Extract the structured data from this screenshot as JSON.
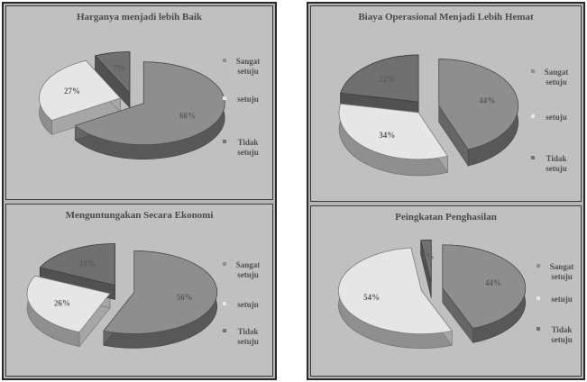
{
  "legend_items": [
    {
      "label": "Sangat setuju",
      "color": "#8e8e8e"
    },
    {
      "label": "setuju",
      "color": "#e6e6e6"
    },
    {
      "label": "Tidak setuju",
      "color": "#707070"
    }
  ],
  "chart_data": [
    {
      "type": "pie",
      "title": "Harganya menjadi lebih Baik",
      "categories": [
        "Sangat setuju",
        "setuju",
        "Tidak setuju"
      ],
      "values": [
        66,
        27,
        7
      ],
      "value_labels": [
        "66%",
        "27%",
        "7%"
      ],
      "exploded": true,
      "style": "3d"
    },
    {
      "type": "pie",
      "title": "Biaya Operasional Menjadi Lebih Hemat",
      "categories": [
        "Sangat setuju",
        "setuju",
        "Tidak setuju"
      ],
      "values": [
        44,
        34,
        22
      ],
      "value_labels": [
        "44%",
        "34%",
        "22%"
      ],
      "exploded": true,
      "style": "3d"
    },
    {
      "type": "pie",
      "title": "Menguntungakan Secara Ekonomi",
      "categories": [
        "Sangat setuju",
        "setuju",
        "Tidak setuju"
      ],
      "values": [
        56,
        26,
        18
      ],
      "value_labels": [
        "56%",
        "26%",
        "18%"
      ],
      "exploded": true,
      "style": "3d"
    },
    {
      "type": "pie",
      "title": "Peingkatan Penghasilan",
      "categories": [
        "Sangat setuju",
        "setuju",
        "Tidak setuju"
      ],
      "values": [
        44,
        54,
        2
      ],
      "value_labels": [
        "44%",
        "54%",
        "2%"
      ],
      "exploded": true,
      "style": "3d"
    }
  ]
}
